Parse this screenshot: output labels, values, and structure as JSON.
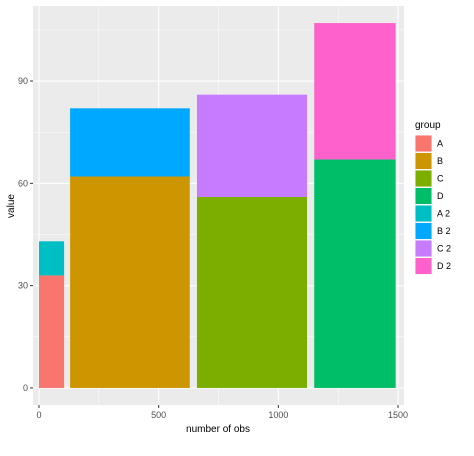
{
  "chart_data": {
    "type": "bar",
    "subtype": "variable-width stacked bar",
    "xlabel": "number of obs",
    "ylabel": "value",
    "xlim": [
      -25,
      1525
    ],
    "ylim": [
      -5,
      112
    ],
    "x_ticks": [
      0,
      500,
      1000,
      1500
    ],
    "x_tick_labels": [
      "0",
      "500",
      "1000",
      "1500"
    ],
    "y_ticks": [
      0,
      30,
      60,
      90
    ],
    "y_tick_labels": [
      "0",
      "30",
      "60",
      "90"
    ],
    "grid": true,
    "legend": {
      "title": "group",
      "placement": "right",
      "entries": [
        {
          "label": "A",
          "color": "#F8766D"
        },
        {
          "label": "B",
          "color": "#CD9600"
        },
        {
          "label": "C",
          "color": "#7CAE00"
        },
        {
          "label": "D",
          "color": "#00BE67"
        },
        {
          "label": "A 2",
          "color": "#00BFC4"
        },
        {
          "label": "B 2",
          "color": "#00A9FF"
        },
        {
          "label": "C 2",
          "color": "#C77CFF"
        },
        {
          "label": "D 2",
          "color": "#FF61CC"
        }
      ]
    },
    "bars": [
      {
        "category": "A",
        "xmin": 0,
        "xmax": 105,
        "segments": [
          {
            "group": "A",
            "ymin": 0,
            "ymax": 33
          },
          {
            "group": "A 2",
            "ymin": 33,
            "ymax": 43
          }
        ]
      },
      {
        "category": "B",
        "xmin": 130,
        "xmax": 630,
        "segments": [
          {
            "group": "B",
            "ymin": 0,
            "ymax": 62
          },
          {
            "group": "B 2",
            "ymin": 62,
            "ymax": 82
          }
        ]
      },
      {
        "category": "C",
        "xmin": 660,
        "xmax": 1120,
        "segments": [
          {
            "group": "C",
            "ymin": 0,
            "ymax": 56
          },
          {
            "group": "C 2",
            "ymin": 56,
            "ymax": 86
          }
        ]
      },
      {
        "category": "D",
        "xmin": 1150,
        "xmax": 1490,
        "segments": [
          {
            "group": "D",
            "ymin": 0,
            "ymax": 67
          },
          {
            "group": "D 2",
            "ymin": 67,
            "ymax": 107
          }
        ]
      }
    ]
  }
}
